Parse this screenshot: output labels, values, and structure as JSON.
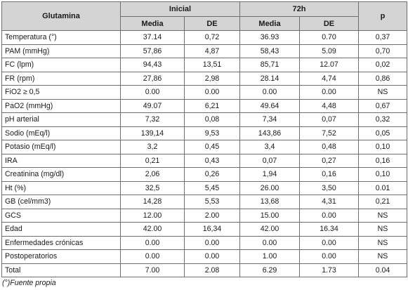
{
  "table": {
    "corner_header": "Glutamina",
    "group_headers": [
      "Inicial",
      "72h"
    ],
    "p_header": "p",
    "sub_headers": [
      "Media",
      "DE",
      "Media",
      "DE"
    ],
    "rows": [
      {
        "label": "Temperatura (°)",
        "values": [
          "37.14",
          "0,72",
          "36.93",
          "0.70",
          "0,37"
        ]
      },
      {
        "label": "PAM (mmHg)",
        "values": [
          "57,86",
          "4,87",
          "58,43",
          "5.09",
          "0,70"
        ]
      },
      {
        "label": "FC (lpm)",
        "values": [
          "94,43",
          "13,51",
          "85,71",
          "12.07",
          "0,02"
        ]
      },
      {
        "label": "FR (rpm)",
        "values": [
          "27,86",
          "2,98",
          "28.14",
          "4,74",
          "0,86"
        ]
      },
      {
        "label": "FiO2 ≥ 0,5",
        "values": [
          "0.00",
          "0.00",
          "0.00",
          "0.00",
          "NS"
        ]
      },
      {
        "label": "PaO2 (mmHg)",
        "values": [
          "49.07",
          "6,21",
          "49.64",
          "4,48",
          "0,67"
        ]
      },
      {
        "label": "pH arterial",
        "values": [
          "7,32",
          "0,08",
          "7,34",
          "0,07",
          "0,32"
        ]
      },
      {
        "label": "Sodio (mEq/l)",
        "values": [
          "139,14",
          "9,53",
          "143,86",
          "7,52",
          "0,05"
        ]
      },
      {
        "label": "Potasio (mEq/l)",
        "values": [
          "3,2",
          "0,45",
          "3,4",
          "0,48",
          "0,10"
        ]
      },
      {
        "label": "IRA",
        "values": [
          "0,21",
          "0,43",
          "0,07",
          "0,27",
          "0,16"
        ]
      },
      {
        "label": "Creatinina (mg/dl)",
        "values": [
          "2,06",
          "0,26",
          "1,94",
          "0,16",
          "0,10"
        ]
      },
      {
        "label": "Ht (%)",
        "values": [
          "32,5",
          "5,45",
          "26.00",
          "3,50",
          "0.01"
        ]
      },
      {
        "label": "GB (cel/mm3)",
        "values": [
          "14,28",
          "5,53",
          "13,68",
          "4,31",
          "0,21"
        ]
      },
      {
        "label": "GCS",
        "values": [
          "12.00",
          "2.00",
          "15.00",
          "0.00",
          "NS"
        ]
      },
      {
        "label": "Edad",
        "values": [
          "42.00",
          "16,34",
          "42.00",
          "16.34",
          "NS"
        ]
      },
      {
        "label": "Enfermedades crónicas",
        "values": [
          "0.00",
          "0.00",
          "0.00",
          "0.00",
          "NS"
        ]
      },
      {
        "label": "Postoperatorios",
        "values": [
          "0.00",
          "0.00",
          "1.00",
          "0.00",
          "NS"
        ]
      },
      {
        "label": "Total",
        "values": [
          "7.00",
          "2.08",
          "6.29",
          "1.73",
          "0.04"
        ]
      }
    ]
  },
  "footnote": "(°)Fuente propia"
}
